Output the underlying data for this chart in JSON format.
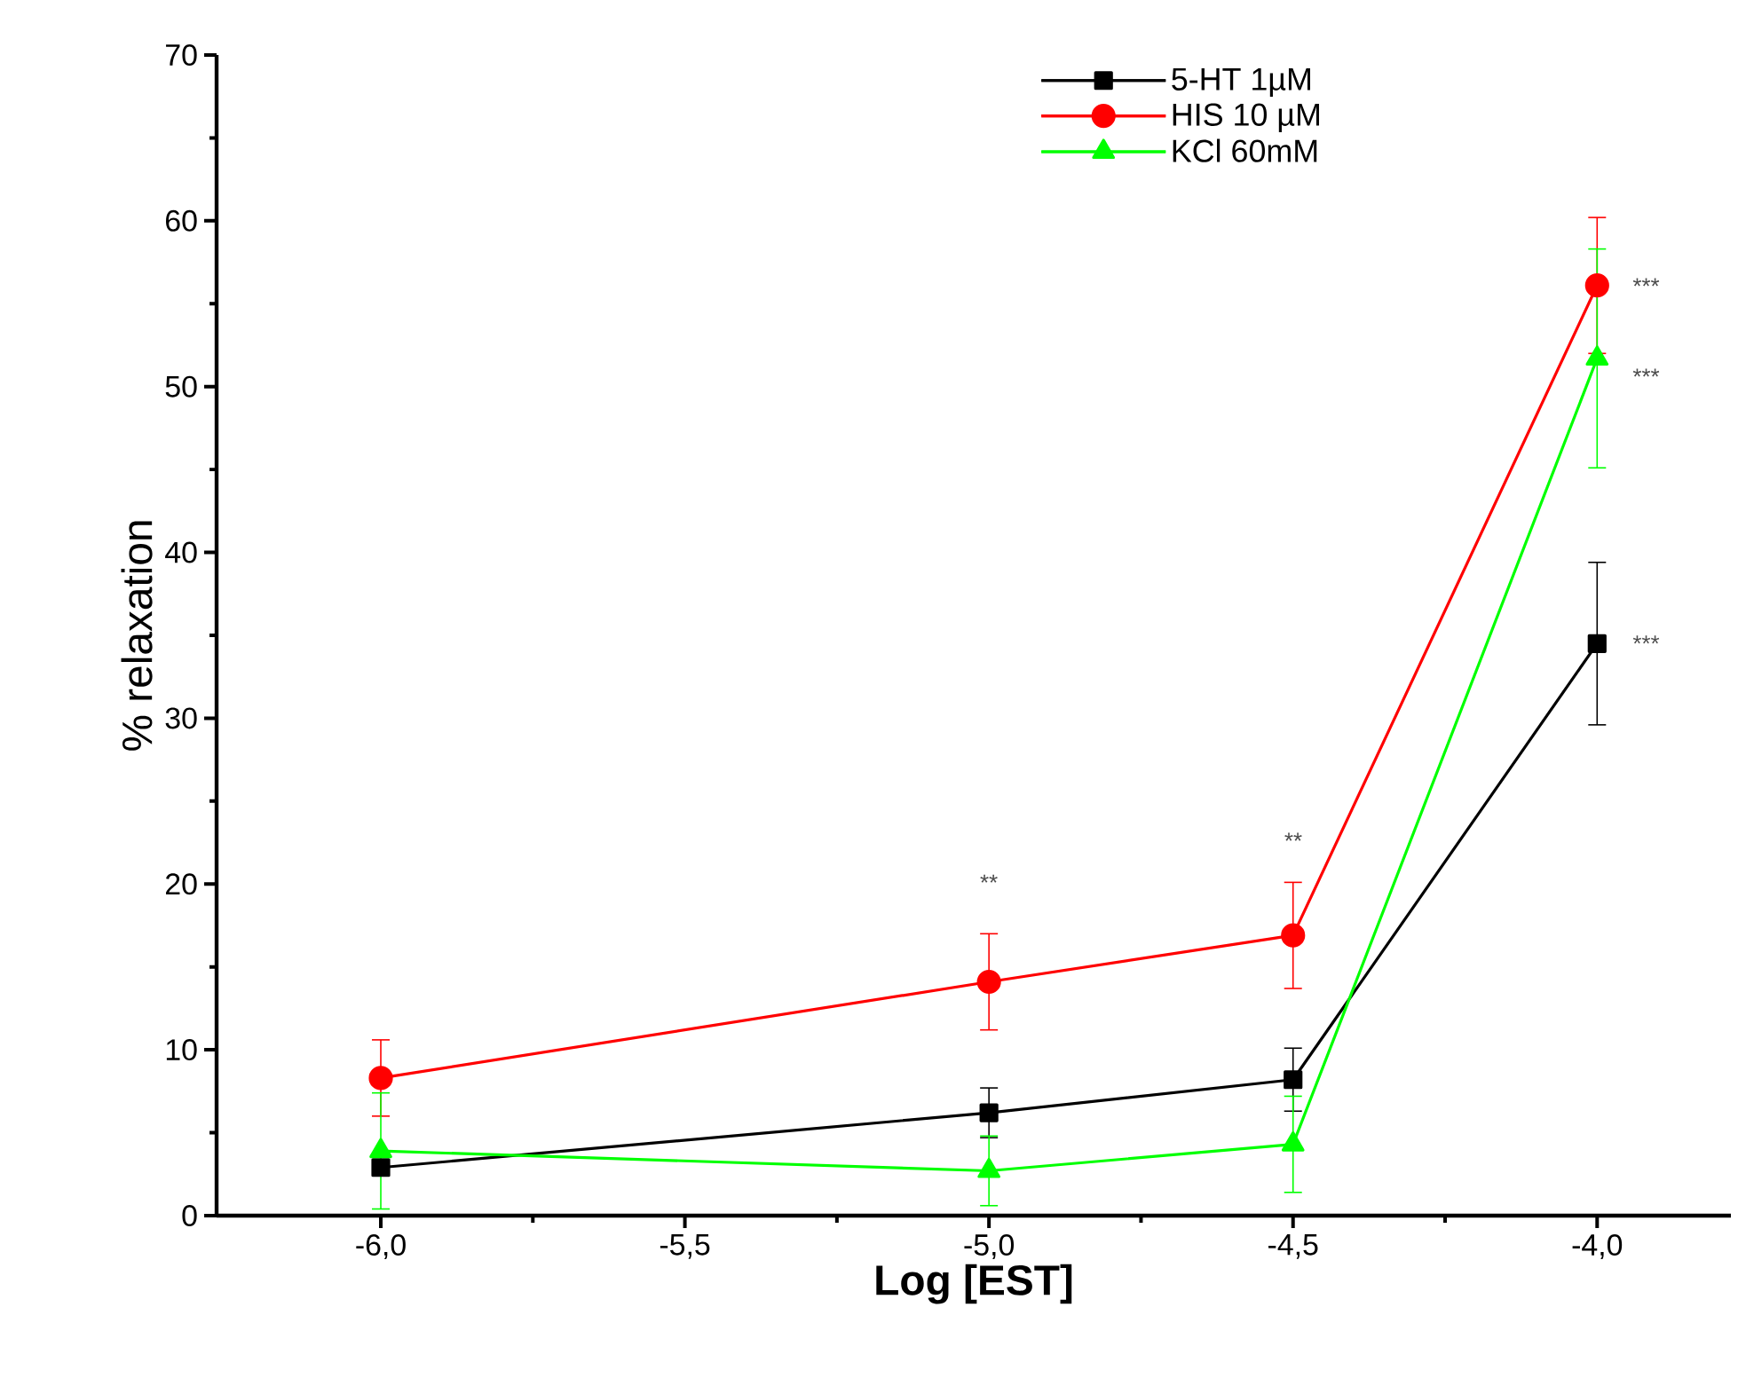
{
  "chart_data": {
    "type": "line",
    "xlabel": "**Log [EST]**",
    "ylabel": "% relaxation",
    "x": [
      -6,
      -5,
      -4.5,
      -4
    ],
    "series": [
      {
        "name": "5-HT 1µM",
        "color": "#000000",
        "marker": "square",
        "values": [
          2.9,
          6.2,
          8.2,
          34.5
        ],
        "errors": [
          null,
          1.5,
          1.9,
          4.9
        ]
      },
      {
        "name": "HIS 10 µM",
        "color": "#ff0000",
        "marker": "circle",
        "values": [
          8.3,
          14.1,
          16.9,
          56.1
        ],
        "errors": [
          2.3,
          2.9,
          3.2,
          4.1
        ]
      },
      {
        "name": "KCl 60mM",
        "color": "#00ff00",
        "marker": "triangle",
        "values": [
          3.9,
          2.7,
          4.3,
          51.7
        ],
        "errors": [
          3.5,
          2.1,
          2.9,
          6.6
        ]
      }
    ],
    "xlim": [
      -6.27,
      -3.78
    ],
    "ylim": [
      0,
      70
    ],
    "xticks": [
      {
        "value": -6,
        "label": "-6,0"
      },
      {
        "value": -5.5,
        "label": "-5,5"
      },
      {
        "value": -5,
        "label": "-5,0"
      },
      {
        "value": -4.5,
        "label": "-4,5"
      },
      {
        "value": -4,
        "label": "-4,0"
      }
    ],
    "yticks": [
      0,
      10,
      20,
      30,
      40,
      50,
      60,
      70
    ],
    "line_style": "solid",
    "grid": false,
    "legend": "top right",
    "annotations": [
      "**",
      "**",
      "***",
      "***",
      "***"
    ]
  }
}
